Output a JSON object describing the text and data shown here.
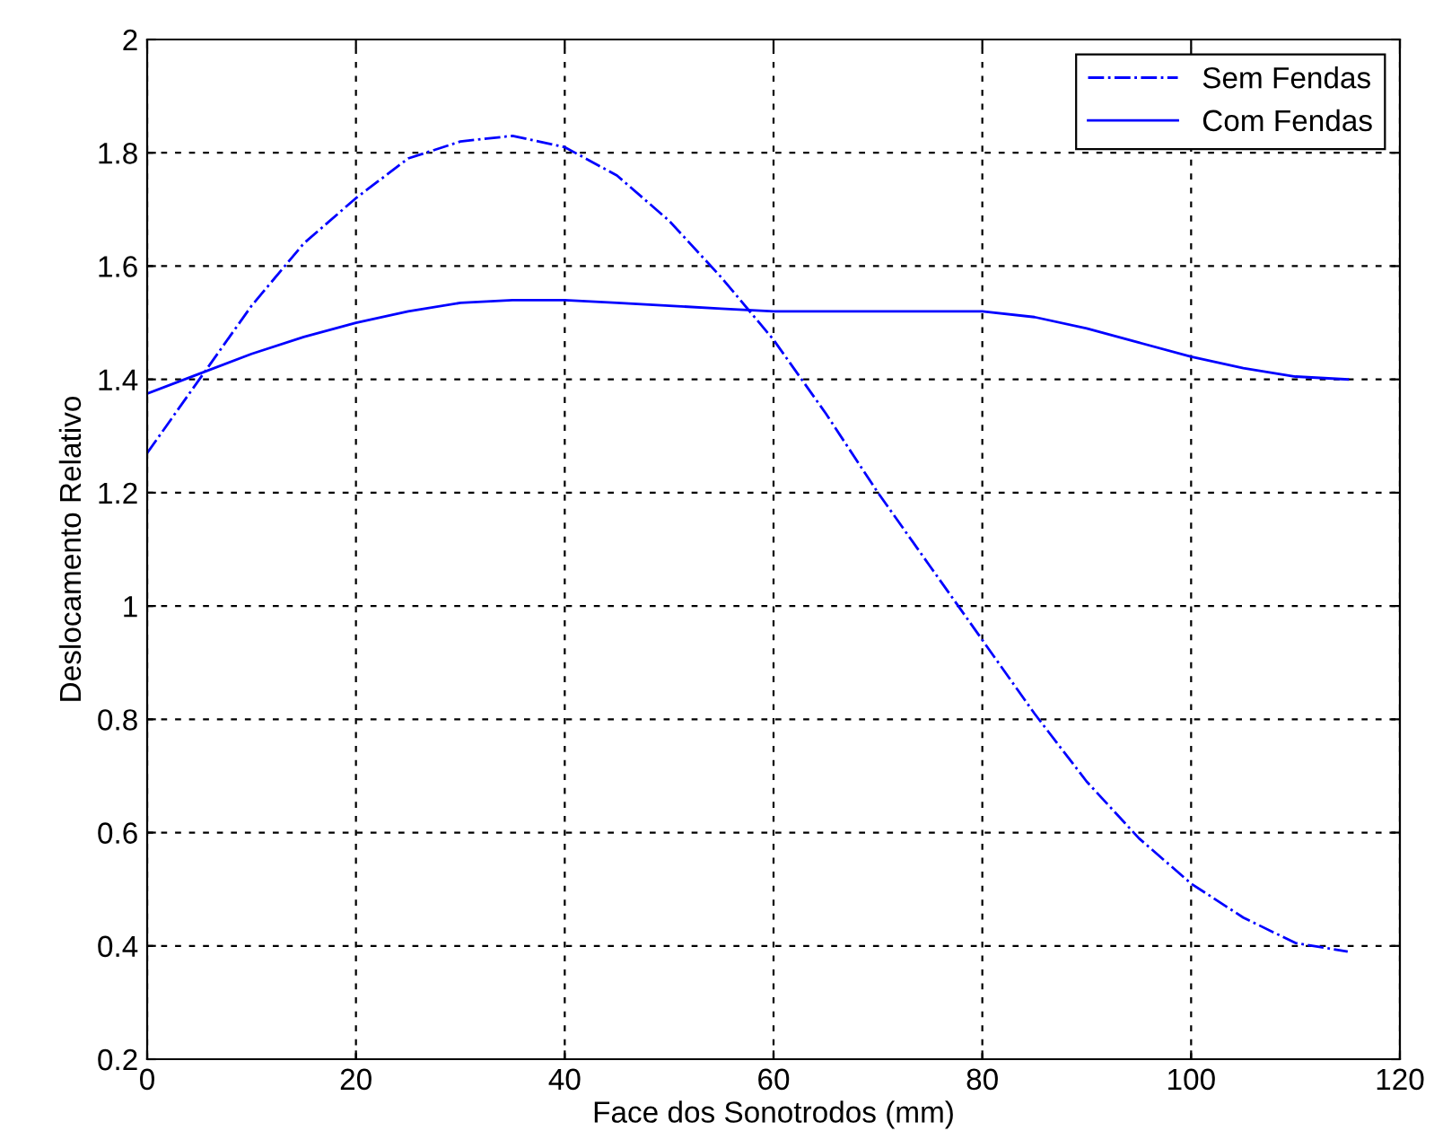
{
  "chart_data": {
    "type": "line",
    "xlabel": "Face dos Sonotrodos (mm)",
    "ylabel": "Deslocamento Relativo",
    "x": [
      0,
      5,
      10,
      15,
      20,
      25,
      30,
      35,
      40,
      45,
      50,
      55,
      60,
      65,
      70,
      75,
      80,
      85,
      90,
      95,
      100,
      105,
      110,
      115
    ],
    "series": [
      {
        "name": "Sem Fendas",
        "color": "#0000ff",
        "line_style": "dashed",
        "values": [
          1.27,
          1.4,
          1.53,
          1.64,
          1.72,
          1.79,
          1.82,
          1.83,
          1.81,
          1.76,
          1.68,
          1.58,
          1.47,
          1.34,
          1.2,
          1.07,
          0.94,
          0.81,
          0.69,
          0.59,
          0.51,
          0.45,
          0.405,
          0.39
        ]
      },
      {
        "name": "Com Fendas",
        "color": "#0000ff",
        "line_style": "solid",
        "values": [
          1.375,
          1.41,
          1.445,
          1.475,
          1.5,
          1.52,
          1.535,
          1.54,
          1.54,
          1.535,
          1.53,
          1.525,
          1.52,
          1.52,
          1.52,
          1.52,
          1.52,
          1.51,
          1.49,
          1.465,
          1.44,
          1.42,
          1.405,
          1.4
        ]
      }
    ],
    "xlim": [
      0,
      120
    ],
    "xticks": [
      0,
      20,
      40,
      60,
      80,
      100,
      120
    ],
    "ylim": [
      0.2,
      2
    ],
    "yticks": [
      0.2,
      0.4,
      0.6,
      0.8,
      1,
      1.2,
      1.4,
      1.6,
      1.8,
      2
    ],
    "grid": true,
    "legend": "top right",
    "marker": "none"
  }
}
